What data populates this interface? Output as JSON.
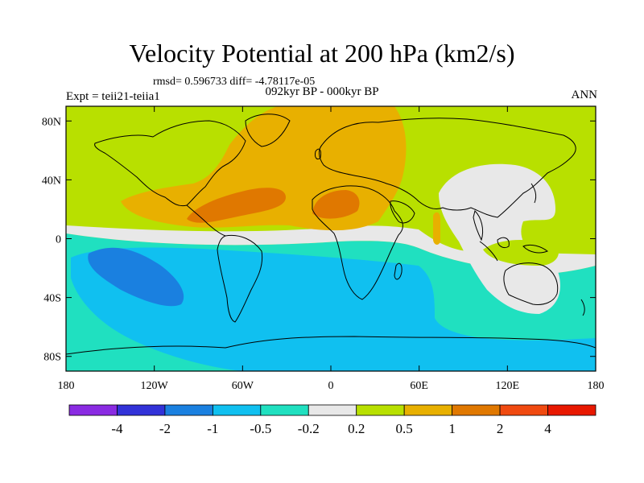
{
  "title": "Velocity Potential at 200 hPa (km2/s)",
  "stats": "rmsd= 0.596733  diff= -4.78117e-05",
  "period": "092kyr BP - 000kyr BP",
  "experiment": "Expt = teii21-teiia1",
  "season": "ANN",
  "map": {
    "lon_range": [
      -180,
      180
    ],
    "lat_range": [
      -90,
      90
    ],
    "lat_ticks": [
      {
        "value": 80,
        "label": "80N"
      },
      {
        "value": 40,
        "label": "40N"
      },
      {
        "value": 0,
        "label": "0"
      },
      {
        "value": -40,
        "label": "40S"
      },
      {
        "value": -80,
        "label": "80S"
      }
    ],
    "lon_ticks": [
      {
        "value": -180,
        "label": "180"
      },
      {
        "value": -120,
        "label": "120W"
      },
      {
        "value": -60,
        "label": "60W"
      },
      {
        "value": 0,
        "label": "0"
      },
      {
        "value": 60,
        "label": "60E"
      },
      {
        "value": 120,
        "label": "120E"
      },
      {
        "value": 180,
        "label": "180"
      }
    ]
  },
  "colorbar": {
    "colors": [
      "#8a2be2",
      "#3232d8",
      "#1a80e0",
      "#10c0f0",
      "#20e0c0",
      "#e8e8e8",
      "#b8e000",
      "#e8b000",
      "#e07800",
      "#f04a10",
      "#e81800"
    ],
    "labels": [
      "-4",
      "-2",
      "-1",
      "-0.5",
      "-0.2",
      "0.2",
      "0.5",
      "1",
      "2",
      "4"
    ]
  }
}
